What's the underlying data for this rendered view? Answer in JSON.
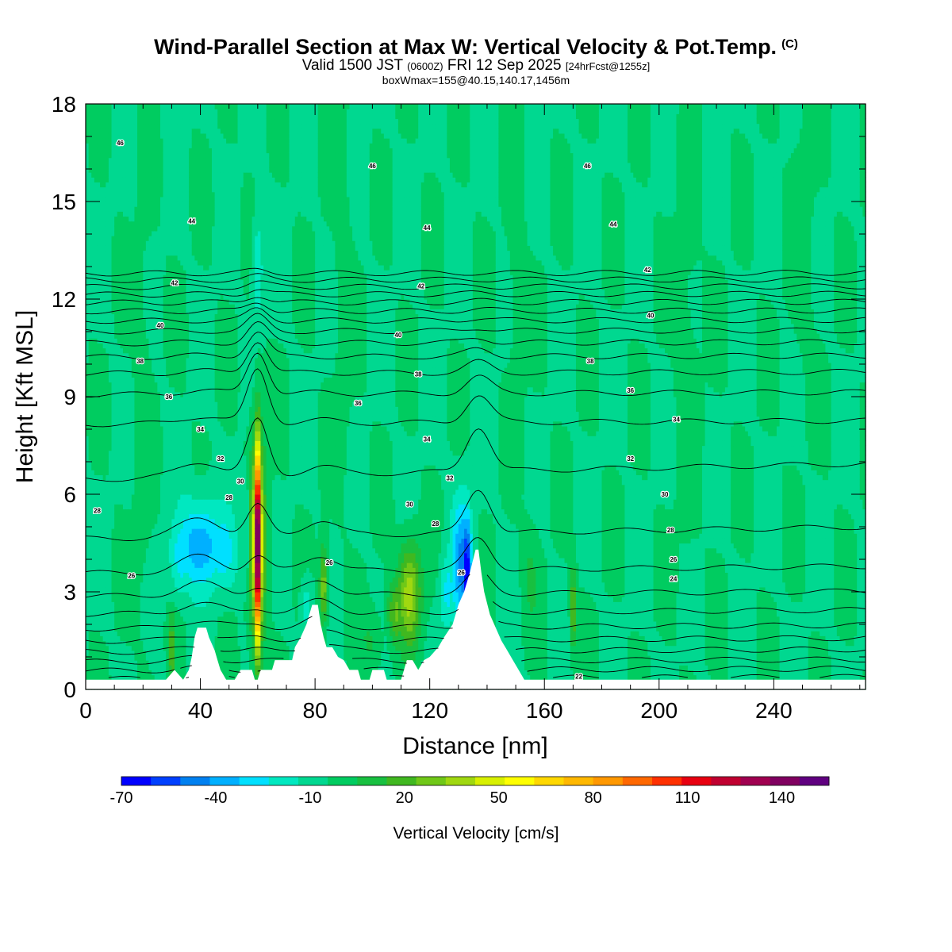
{
  "title": {
    "main": "Wind-Parallel Section at Max W: Vertical Velocity & Pot.Temp.",
    "copyright": "(C)",
    "valid_prefix": "Valid 1500 JST",
    "valid_utc": "(0600Z)",
    "valid_date": "FRI 12 Sep 2025",
    "forecast": "[24hrFcst@1255z]",
    "box_info": "boxWmax=155@40.15,140.17,1456m"
  },
  "chart_data": {
    "type": "heatmap",
    "xlabel": "Distance [nm]",
    "ylabel": "Height [Kft MSL]",
    "xlim": [
      0,
      272
    ],
    "ylim": [
      0,
      18
    ],
    "x_ticks": [
      0,
      40,
      80,
      120,
      160,
      200,
      240
    ],
    "y_ticks": [
      0,
      3,
      6,
      9,
      12,
      15,
      18
    ],
    "colorbar": {
      "label": "Vertical Velocity [cm/s]",
      "tick_labels": [
        "-70",
        "-40",
        "-10",
        "20",
        "50",
        "80",
        "110",
        "140"
      ],
      "tick_values": [
        -70,
        -40,
        -10,
        20,
        50,
        80,
        110,
        140
      ],
      "range": [
        -70,
        155
      ],
      "colors": [
        "#0000ff",
        "#0040ff",
        "#0080f0",
        "#00b0ff",
        "#00e0ff",
        "#00e8c0",
        "#00d890",
        "#00cc60",
        "#18c040",
        "#40b820",
        "#70c818",
        "#a0d810",
        "#d8f000",
        "#ffff00",
        "#ffd800",
        "#ffb800",
        "#ff9800",
        "#ff6800",
        "#ff3000",
        "#e80010",
        "#c00030",
        "#a00050",
        "#800060",
        "#600080"
      ]
    },
    "background_value": -5,
    "terrain": [
      [
        0,
        0.3
      ],
      [
        28,
        0.3
      ],
      [
        31,
        0.6
      ],
      [
        34,
        0.3
      ],
      [
        36,
        0.6
      ],
      [
        37,
        1.0
      ],
      [
        38,
        1.6
      ],
      [
        39,
        1.9
      ],
      [
        42,
        1.9
      ],
      [
        43,
        1.6
      ],
      [
        45,
        1.2
      ],
      [
        46,
        0.9
      ],
      [
        47,
        0.6
      ],
      [
        49,
        0.3
      ],
      [
        52,
        0.3
      ],
      [
        54,
        0.6
      ],
      [
        58,
        0.6
      ],
      [
        59,
        0.3
      ],
      [
        60,
        0.3
      ],
      [
        61,
        0.6
      ],
      [
        65,
        0.6
      ],
      [
        66,
        0.9
      ],
      [
        72,
        0.9
      ],
      [
        73,
        1.3
      ],
      [
        75,
        1.6
      ],
      [
        77,
        2.0
      ],
      [
        79,
        2.6
      ],
      [
        81,
        2.6
      ],
      [
        82,
        2.0
      ],
      [
        83,
        1.6
      ],
      [
        84,
        1.3
      ],
      [
        86,
        1.3
      ],
      [
        88,
        1.0
      ],
      [
        90,
        0.9
      ],
      [
        92,
        0.6
      ],
      [
        95,
        0.6
      ],
      [
        96,
        0.3
      ],
      [
        99,
        0.3
      ],
      [
        100,
        0.6
      ],
      [
        104,
        0.6
      ],
      [
        105,
        0.3
      ],
      [
        110,
        0.3
      ],
      [
        111,
        0.6
      ],
      [
        112,
        0.9
      ],
      [
        114,
        0.9
      ],
      [
        116,
        0.6
      ],
      [
        118,
        0.9
      ],
      [
        120,
        1.0
      ],
      [
        123,
        1.3
      ],
      [
        125,
        1.6
      ],
      [
        128,
        2.0
      ],
      [
        130,
        2.6
      ],
      [
        132,
        3.0
      ],
      [
        134,
        3.6
      ],
      [
        136,
        4.3
      ],
      [
        137,
        4.3
      ],
      [
        138,
        3.6
      ],
      [
        139,
        3.0
      ],
      [
        141,
        2.3
      ],
      [
        143,
        1.9
      ],
      [
        145,
        1.5
      ],
      [
        147,
        1.2
      ],
      [
        149,
        0.9
      ],
      [
        151,
        0.6
      ],
      [
        153,
        0.3
      ],
      [
        272,
        0.3
      ]
    ],
    "w_features": [
      {
        "x": 60,
        "z": 4.5,
        "rx": 1.3,
        "rz": 3.0,
        "w": 155
      },
      {
        "x": 60,
        "z": 4.5,
        "rx": 2.8,
        "rz": 3.4,
        "w": 50
      },
      {
        "x": 40,
        "z": 4.5,
        "rx": 7,
        "rz": 1.4,
        "w": -35
      },
      {
        "x": 33,
        "z": 4.0,
        "rx": 4,
        "rz": 1.2,
        "w": -22
      },
      {
        "x": 48,
        "z": 4.2,
        "rx": 5,
        "rz": 1.2,
        "w": -20
      },
      {
        "x": 57,
        "z": 4.8,
        "rx": 3,
        "rz": 1.8,
        "w": -15
      },
      {
        "x": 113,
        "z": 3.0,
        "rx": 4,
        "rz": 1.6,
        "w": 42
      },
      {
        "x": 108,
        "z": 2.4,
        "rx": 3,
        "rz": 1.0,
        "w": 28
      },
      {
        "x": 83,
        "z": 3.2,
        "rx": 1.4,
        "rz": 1.2,
        "w": 38
      },
      {
        "x": 30,
        "z": 1.2,
        "rx": 1.0,
        "rz": 1.0,
        "w": 30
      },
      {
        "x": 170,
        "z": 2.5,
        "rx": 1.0,
        "rz": 1.2,
        "w": 35
      },
      {
        "x": 133,
        "z": 3.5,
        "rx": 1.6,
        "rz": 1.8,
        "w": -60
      },
      {
        "x": 131,
        "z": 3.9,
        "rx": 3.5,
        "rz": 2.0,
        "w": -35
      },
      {
        "x": 126,
        "z": 3.0,
        "rx": 2.5,
        "rz": 1.2,
        "w": -20
      },
      {
        "x": 77,
        "z": 2.6,
        "rx": 2.0,
        "rz": 0.9,
        "w": -18
      },
      {
        "x": 60,
        "z": 13.0,
        "rx": 1.8,
        "rz": 1.5,
        "w": -22
      },
      {
        "x": 100,
        "z": 1.5,
        "rx": 4,
        "rz": 1.0,
        "w": 12
      },
      {
        "x": 155,
        "z": 3.5,
        "rx": 3,
        "rz": 1.5,
        "w": 10
      },
      {
        "x": 20,
        "z": 8,
        "rx": 3,
        "rz": 6,
        "w": 6
      },
      {
        "x": 90,
        "z": 12,
        "rx": 3,
        "rz": 5,
        "w": 6
      },
      {
        "x": 150,
        "z": 13,
        "rx": 3,
        "rz": 5,
        "w": 6
      },
      {
        "x": 210,
        "z": 10,
        "rx": 4,
        "rz": 6,
        "w": 6
      },
      {
        "x": 250,
        "z": 14,
        "rx": 4,
        "rz": 4,
        "w": 6
      }
    ],
    "isentrope_levels": [
      22,
      23,
      24,
      25,
      26,
      27,
      28,
      29,
      30,
      31,
      32,
      33,
      34,
      35,
      36,
      37,
      38,
      39,
      40,
      41,
      42,
      43,
      44,
      45,
      46,
      47
    ],
    "isentrope_labels": [
      {
        "text": "46",
        "x": 12,
        "z": 16.8
      },
      {
        "text": "46",
        "x": 100,
        "z": 16.1
      },
      {
        "text": "46",
        "x": 175,
        "z": 16.1
      },
      {
        "text": "44",
        "x": 37,
        "z": 14.4
      },
      {
        "text": "44",
        "x": 119,
        "z": 14.2
      },
      {
        "text": "44",
        "x": 184,
        "z": 14.3
      },
      {
        "text": "42",
        "x": 31,
        "z": 12.5
      },
      {
        "text": "42",
        "x": 117,
        "z": 12.4
      },
      {
        "text": "42",
        "x": 196,
        "z": 12.9
      },
      {
        "text": "40",
        "x": 26,
        "z": 11.2
      },
      {
        "text": "40",
        "x": 109,
        "z": 10.9
      },
      {
        "text": "40",
        "x": 197,
        "z": 11.5
      },
      {
        "text": "38",
        "x": 19,
        "z": 10.1
      },
      {
        "text": "38",
        "x": 116,
        "z": 9.7
      },
      {
        "text": "38",
        "x": 176,
        "z": 10.1
      },
      {
        "text": "36",
        "x": 29,
        "z": 9.0
      },
      {
        "text": "36",
        "x": 95,
        "z": 8.8
      },
      {
        "text": "36",
        "x": 190,
        "z": 9.2
      },
      {
        "text": "34",
        "x": 40,
        "z": 8.0
      },
      {
        "text": "34",
        "x": 119,
        "z": 7.7
      },
      {
        "text": "34",
        "x": 206,
        "z": 8.3
      },
      {
        "text": "32",
        "x": 47,
        "z": 7.1
      },
      {
        "text": "32",
        "x": 127,
        "z": 6.5
      },
      {
        "text": "32",
        "x": 190,
        "z": 7.1
      },
      {
        "text": "30",
        "x": 54,
        "z": 6.4
      },
      {
        "text": "30",
        "x": 113,
        "z": 5.7
      },
      {
        "text": "30",
        "x": 202,
        "z": 6.0
      },
      {
        "text": "28",
        "x": 4,
        "z": 5.5
      },
      {
        "text": "28",
        "x": 50,
        "z": 5.9
      },
      {
        "text": "28",
        "x": 122,
        "z": 5.1
      },
      {
        "text": "28",
        "x": 204,
        "z": 4.9
      },
      {
        "text": "26",
        "x": 16,
        "z": 3.5
      },
      {
        "text": "26",
        "x": 85,
        "z": 3.9
      },
      {
        "text": "26",
        "x": 131,
        "z": 3.6
      },
      {
        "text": "26",
        "x": 205,
        "z": 4.0
      },
      {
        "text": "24",
        "x": 205,
        "z": 3.4
      },
      {
        "text": "22",
        "x": 172,
        "z": 0.4
      }
    ]
  }
}
